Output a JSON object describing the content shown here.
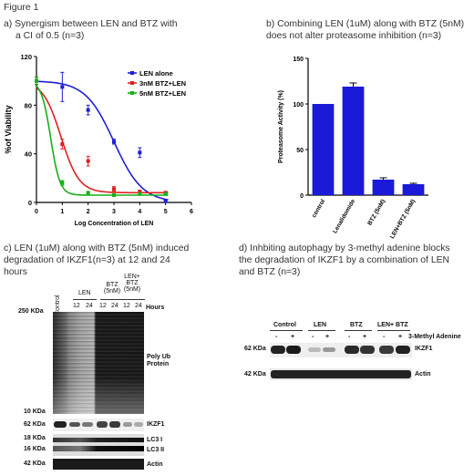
{
  "figure_label": "Figure 1",
  "panel_a": {
    "caption_line1": "a)   Synergism between LEN and BTZ with",
    "caption_line2": "a CI of 0.5 (n=3)"
  },
  "panel_b": {
    "caption_line1": "b) Combining LEN (1uM) along with BTZ (5nM)",
    "caption_line2": "does not alter proteasome inhibition (n=3)"
  },
  "panel_c": {
    "caption_line1": "c) LEN (1uM) along with BTZ (5nM) induced",
    "caption_line2": "degradation of IKZF1(n=3)  at 12 and 24",
    "caption_line3": "hours",
    "col_control": "Control",
    "col_len": "LEN",
    "col_btz_1": "BTZ",
    "col_btz_2": "(5nM)",
    "col_lenbtz_1": "LEN+",
    "col_lenbtz_2": "BTZ",
    "col_lenbtz_3": "(5nM)",
    "t12a": "12",
    "t24a": "24",
    "t12b": "12",
    "t24b": "24",
    "t12c": "12",
    "t24c": "24",
    "hours": "Hours",
    "mw_250": "250 KDa",
    "mw_10": "10 KDa",
    "mw_62": "62 KDa",
    "mw_18": "18 KDa",
    "mw_16": "16 KDa",
    "mw_42": "42 KDa",
    "polyub_1": "Poly Ub",
    "polyub_2": "Protein",
    "ikzf1": "IKZF1",
    "lc3i": "LC3 I",
    "lc3ii": "LC3 II",
    "actin": "Actin"
  },
  "panel_d": {
    "caption_line1": "d) Inhbiting autophagy by 3-methyl adenine blocks",
    "caption_line2": "the degradation of IKZF1 by a combination of LEN",
    "caption_line3": "and BTZ (n=3)",
    "grp_control": "Control",
    "grp_len": "LEN",
    "grp_btz": "BTZ",
    "grp_lenbtz": "LEN+ BTZ",
    "minus": "-",
    "plus": "+",
    "treatment": "3-Methyl Adenine",
    "mw_62": "62 KDa",
    "mw_42": "42 KDa",
    "ikzf1": "IKZF1",
    "actin": "Actin"
  },
  "chart_data": [
    {
      "type": "scatter",
      "panel": "a",
      "ylabel": "%of Viability",
      "xlabel": "Log Concentration of LEN",
      "xlim": [
        0,
        6
      ],
      "ylim": [
        0,
        120
      ],
      "xticks": [
        "0",
        "1",
        "2",
        "3",
        "4",
        "5",
        "6"
      ],
      "yticks": [
        "0",
        "40",
        "80",
        "120"
      ],
      "legend_position": "top-right",
      "series": [
        {
          "name": "LEN alone",
          "color": "#1f1fd6",
          "x": [
            0,
            1,
            2,
            3,
            4,
            5
          ],
          "y": [
            100,
            95,
            76,
            50,
            41,
            1
          ],
          "err": [
            3,
            12,
            4,
            2,
            4,
            1
          ]
        },
        {
          "name": "3nM BTZ+LEN",
          "color": "#e02020",
          "x": [
            0,
            1,
            2,
            3,
            4,
            5
          ],
          "y": [
            100,
            48,
            34,
            11,
            9,
            8
          ],
          "err": [
            3,
            4,
            4,
            2,
            1,
            1
          ]
        },
        {
          "name": "5nM BTZ+LEN",
          "color": "#17b017",
          "x": [
            0,
            1,
            2,
            3,
            4,
            5
          ],
          "y": [
            100,
            16,
            8,
            6,
            7,
            7
          ],
          "err": [
            3,
            2,
            1,
            1,
            1,
            1
          ]
        }
      ]
    },
    {
      "type": "bar",
      "panel": "b",
      "ylabel": "Proteasome Activity (%)",
      "ylim": [
        0,
        150
      ],
      "yticks": [
        "0",
        "50",
        "100",
        "150"
      ],
      "color": "#1a1ad8",
      "categories": [
        "control",
        "Lenalidomide",
        "BTZ (5nM)",
        "LEN+BTZ (5nM)"
      ],
      "values": [
        100,
        119,
        17,
        12
      ],
      "errors": [
        0,
        4,
        2,
        1
      ]
    }
  ]
}
